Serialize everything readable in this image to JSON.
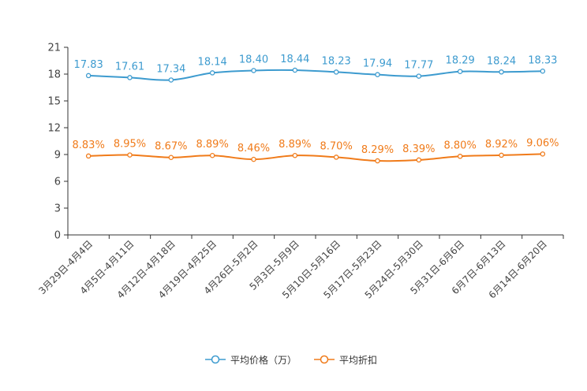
{
  "chart_data": {
    "type": "line",
    "categories": [
      "3月29日-4月4日",
      "4月5日-4月11日",
      "4月12日-4月18日",
      "4月19日-4月25日",
      "4月26日-5月2日",
      "5月3日-5月9日",
      "5月10日-5月16日",
      "5月17日-5月23日",
      "5月24日-5月30日",
      "5月31日-6月6日",
      "6月7日-6月13日",
      "6月14日-6月20日"
    ],
    "ylim": [
      0,
      21
    ],
    "yticks": [
      0,
      3,
      6,
      9,
      12,
      15,
      18,
      21
    ],
    "grid": false,
    "legend_position": "bottom-center",
    "series": [
      {
        "name": "平均价格（万）",
        "color": "#3d9bcf",
        "values": [
          17.83,
          17.61,
          17.34,
          18.14,
          18.4,
          18.44,
          18.23,
          17.94,
          17.77,
          18.29,
          18.24,
          18.33
        ],
        "labels": [
          "17.83",
          "17.61",
          "17.34",
          "18.14",
          "18.40",
          "18.44",
          "18.23",
          "17.94",
          "17.77",
          "18.29",
          "18.24",
          "18.33"
        ]
      },
      {
        "name": "平均折扣",
        "color": "#f07b1a",
        "values": [
          8.83,
          8.95,
          8.67,
          8.89,
          8.46,
          8.89,
          8.7,
          8.29,
          8.39,
          8.8,
          8.92,
          9.06
        ],
        "labels": [
          "8.83%",
          "8.95%",
          "8.67%",
          "8.89%",
          "8.46%",
          "8.89%",
          "8.70%",
          "8.29%",
          "8.39%",
          "8.80%",
          "8.92%",
          "9.06%"
        ]
      }
    ]
  }
}
